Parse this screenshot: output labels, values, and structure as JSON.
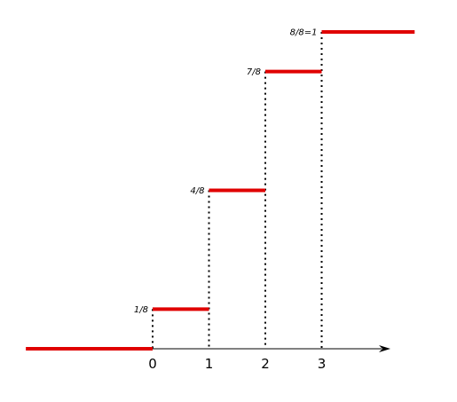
{
  "chart_data": {
    "type": "line",
    "title": "",
    "xlabel": "",
    "ylabel": "",
    "step": true,
    "xlim": [
      -2.25,
      4.2
    ],
    "ylim": [
      0,
      1
    ],
    "x_ticks": [
      "0",
      "1",
      "2",
      "3"
    ],
    "series": [
      {
        "segments": [
          {
            "x": [
              -2.25,
              0
            ],
            "y": 0
          },
          {
            "x": [
              0,
              1
            ],
            "y": 0.125
          },
          {
            "x": [
              1,
              2
            ],
            "y": 0.5
          },
          {
            "x": [
              2,
              3
            ],
            "y": 0.875
          },
          {
            "x": [
              3,
              4.65
            ],
            "y": 1
          }
        ]
      }
    ],
    "level_labels": [
      {
        "text": "1/8",
        "x": 0,
        "y": 0.125
      },
      {
        "text": "4/8",
        "x": 1,
        "y": 0.5
      },
      {
        "text": "7/8",
        "x": 2,
        "y": 0.875
      },
      {
        "text": "8/8=1",
        "x": 3,
        "y": 1
      }
    ],
    "dropline_x": [
      0,
      1,
      2,
      3
    ],
    "grid": false,
    "colors": {
      "step": "#e00000",
      "axis": "#000000",
      "dropline": "#000000"
    }
  }
}
